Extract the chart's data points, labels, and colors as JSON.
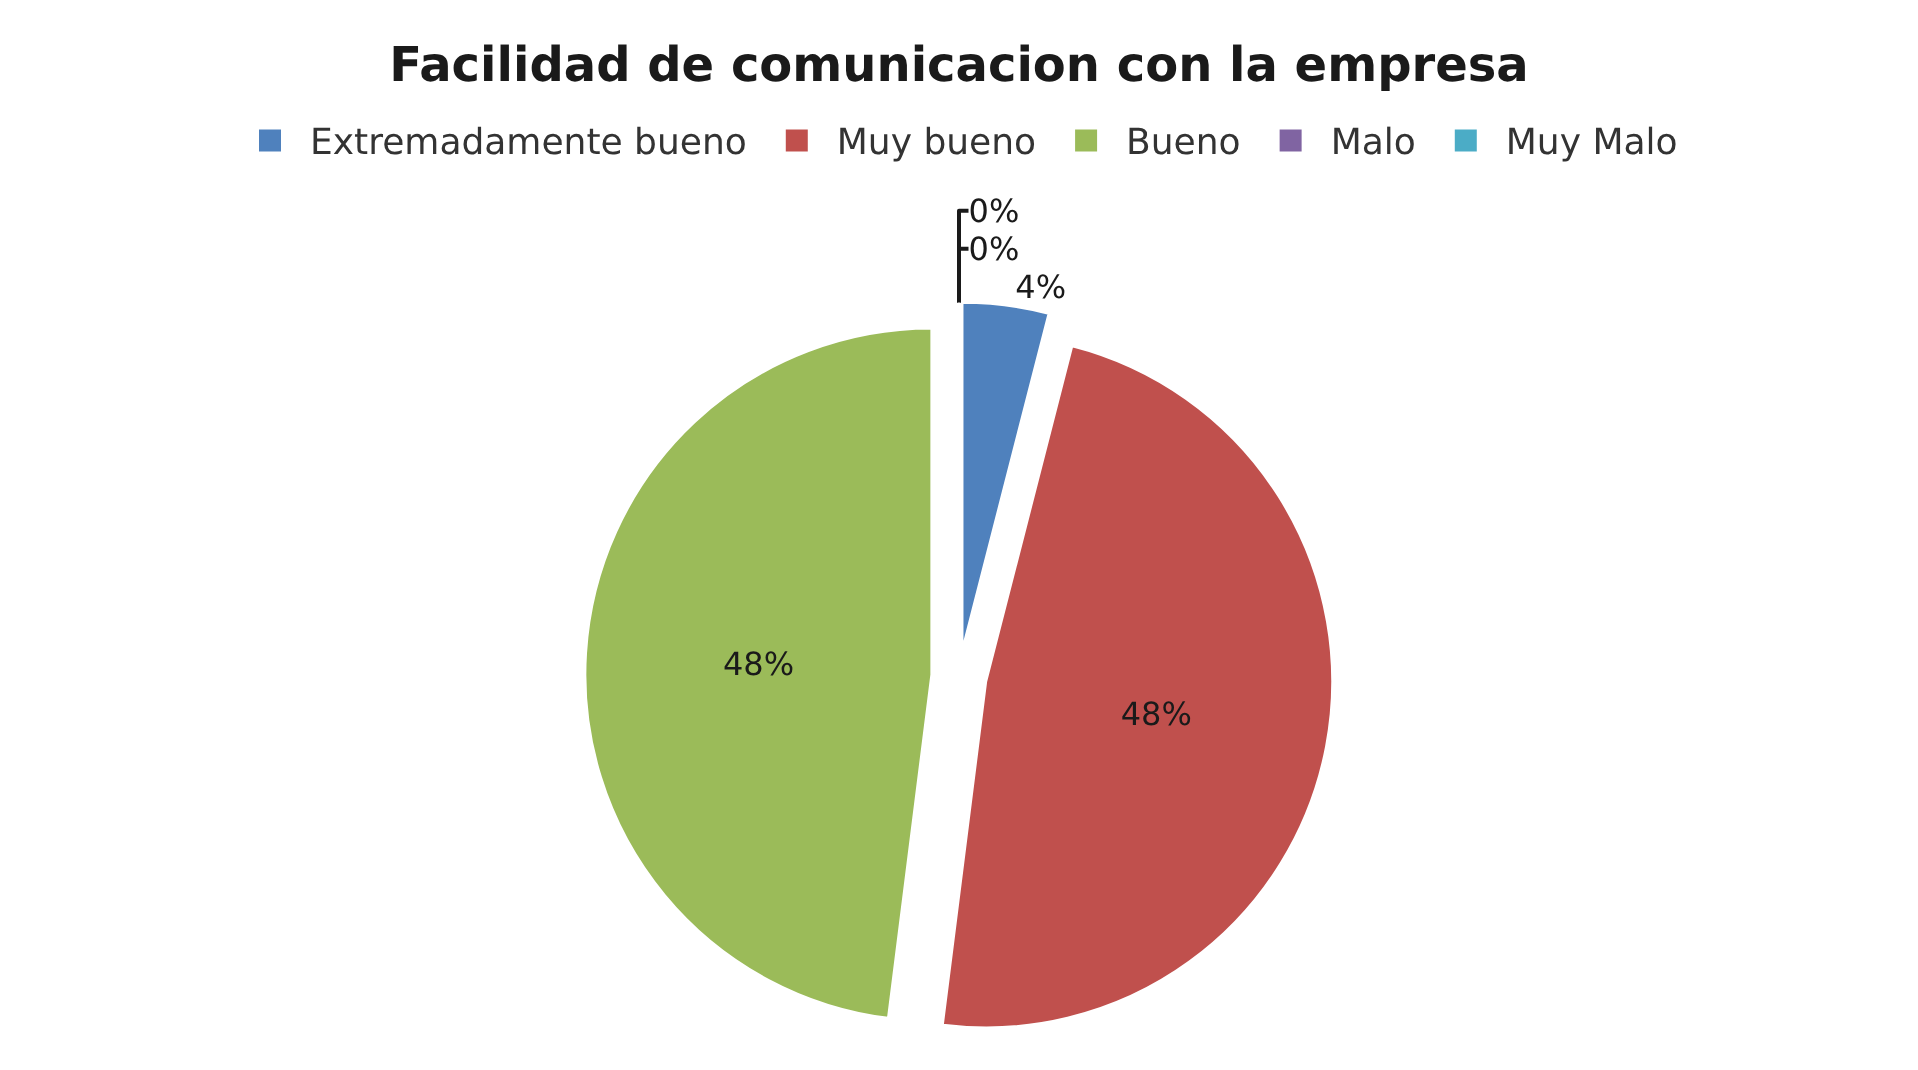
{
  "chart_data": {
    "type": "pie",
    "title": "Facilidad de comunicacion con la empresa",
    "categories": [
      "Extremadamente bueno",
      "Muy bueno",
      "Bueno",
      "Malo",
      "Muy Malo"
    ],
    "values": [
      4,
      48,
      48,
      0,
      0
    ],
    "colors": [
      "#4f81bd",
      "#c0504d",
      "#9bbb59",
      "#8064a2",
      "#4bacc6"
    ],
    "value_labels": [
      "4%",
      "48%",
      "48%",
      "0%",
      "0%"
    ],
    "legend": "top"
  }
}
